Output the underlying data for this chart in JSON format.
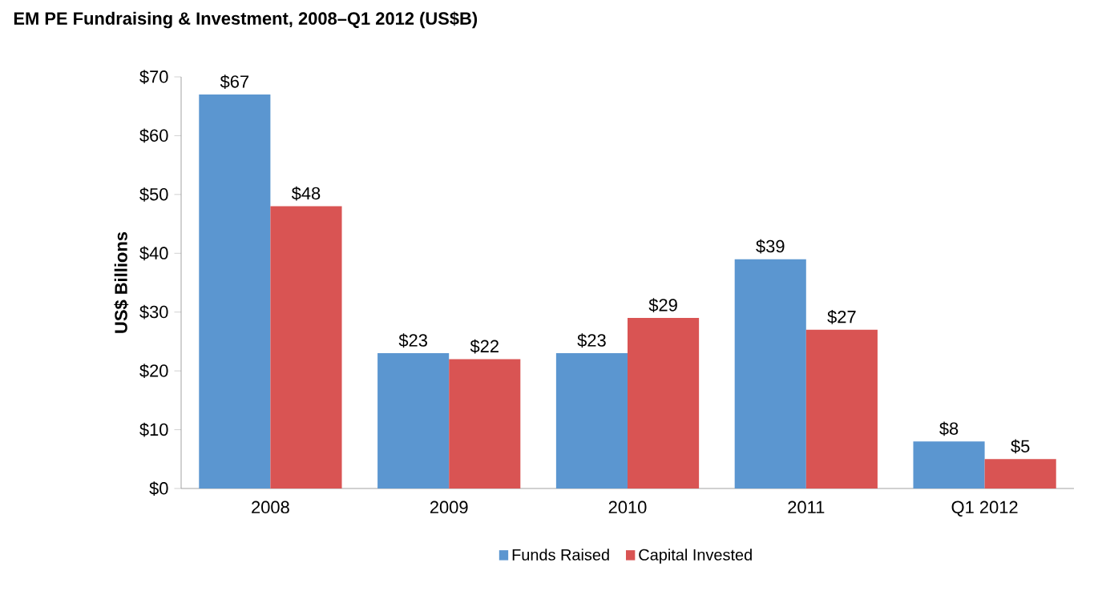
{
  "chart_data": {
    "type": "bar",
    "title": "EM PE Fundraising & Investment, 2008–Q1 2012 (US$B)",
    "ylabel": "US$ Billions",
    "categories": [
      "2008",
      "2009",
      "2010",
      "2011",
      "Q1 2012"
    ],
    "series": [
      {
        "name": "Funds Raised",
        "color": "#5b96d0",
        "values": [
          67,
          23,
          23,
          39,
          8
        ],
        "value_labels": [
          "$67",
          "$23",
          "$23",
          "$39",
          "$8"
        ]
      },
      {
        "name": "Capital Invested",
        "color": "#d95453",
        "values": [
          48,
          22,
          29,
          27,
          5
        ],
        "value_labels": [
          "$48",
          "$22",
          "$29",
          "$27",
          "$5"
        ]
      }
    ],
    "ylim": [
      0,
      70
    ],
    "yticks": [
      {
        "value": 0,
        "label": "$0"
      },
      {
        "value": 10,
        "label": "$10"
      },
      {
        "value": 20,
        "label": "$20"
      },
      {
        "value": 30,
        "label": "$30"
      },
      {
        "value": 40,
        "label": "$40"
      },
      {
        "value": 50,
        "label": "$50"
      },
      {
        "value": 60,
        "label": "$60"
      },
      {
        "value": 70,
        "label": "$70"
      }
    ],
    "legend": "bottom"
  }
}
